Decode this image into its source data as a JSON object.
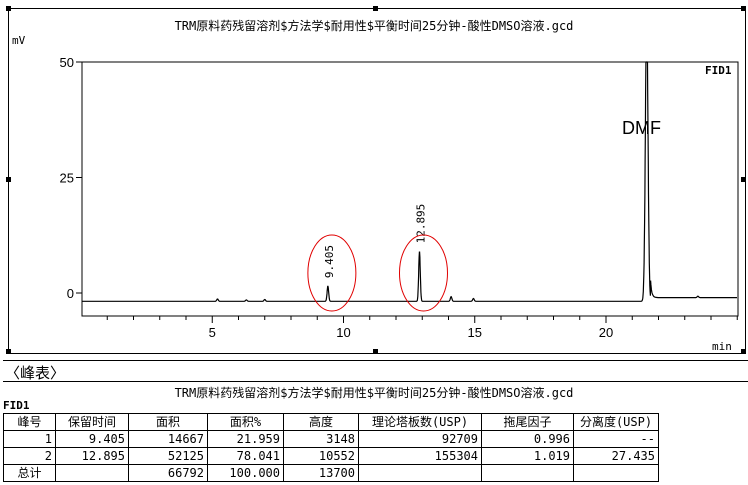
{
  "chart_data": {
    "type": "line",
    "title": "TRM原料药残留溶剂$方法学$耐用性$平衡时间25分钟-酸性DMSO溶液.gcd",
    "ylabel": "mV",
    "xlabel": "min",
    "detector": "FID1",
    "xlim": [
      0,
      25
    ],
    "ylim": [
      -3,
      50
    ],
    "xticks": [
      5,
      10,
      15,
      20
    ],
    "yticks": [
      0,
      25,
      50
    ],
    "baseline": -1.8,
    "peaks": [
      {
        "rt": 9.405,
        "height": 1.5,
        "label": "9.405"
      },
      {
        "rt": 12.895,
        "height": 9,
        "label": "12.895"
      },
      {
        "rt": 21.55,
        "height": 60,
        "label": ""
      }
    ],
    "annotation": "DMF",
    "highlight_color": "#e00000"
  },
  "peak_table": {
    "section_label": "〈峰表〉",
    "title": "TRM原料药残留溶剂$方法学$耐用性$平衡时间25分钟-酸性DMSO溶液.gcd",
    "detector": "FID1",
    "headers": [
      "峰号",
      "保留时间",
      "面积",
      "面积%",
      "高度",
      "理论塔板数(USP)",
      "拖尾因子",
      "分离度(USP)"
    ],
    "rows": [
      [
        "1",
        "9.405",
        "14667",
        "21.959",
        "3148",
        "92709",
        "0.996",
        "--"
      ],
      [
        "2",
        "12.895",
        "52125",
        "78.041",
        "10552",
        "155304",
        "1.019",
        "27.435"
      ],
      [
        "总计",
        "",
        "66792",
        "100.000",
        "13700",
        "",
        "",
        ""
      ]
    ]
  }
}
